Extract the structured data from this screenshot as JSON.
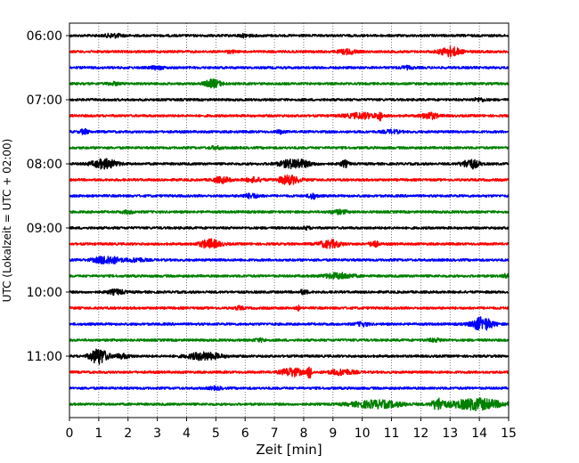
{
  "chart_data": {
    "type": "line",
    "subtype": "helicorder",
    "title": "",
    "xlabel": "Zeit  [min]",
    "ylabel": "UTC (Lokalzeit = UTC + 02:00)",
    "xlim": [
      0,
      15
    ],
    "x_ticks": [
      0,
      1,
      2,
      3,
      4,
      5,
      6,
      7,
      8,
      9,
      10,
      11,
      12,
      13,
      14,
      15
    ],
    "y_tick_labels": [
      "06:00",
      "07:00",
      "08:00",
      "09:00",
      "10:00",
      "11:00"
    ],
    "trace_interval_minutes": 15,
    "grid": "vertical dotted",
    "legend": "none",
    "colors_cycle": [
      "#000000",
      "#ff0000",
      "#0000ff",
      "#008000"
    ],
    "traces": [
      {
        "start": "06:00",
        "color": "#000000",
        "events": [
          [
            1.5,
            0.35,
            0.2
          ],
          [
            6.0,
            0.25,
            0.15
          ]
        ]
      },
      {
        "start": "06:15",
        "color": "#ff0000",
        "events": [
          [
            9.5,
            0.45,
            0.2
          ],
          [
            13.0,
            0.9,
            0.25
          ],
          [
            5.5,
            0.2,
            0.1
          ]
        ]
      },
      {
        "start": "06:30",
        "color": "#0000ff",
        "events": [
          [
            3.0,
            0.3,
            0.15
          ],
          [
            11.5,
            0.25,
            0.15
          ]
        ]
      },
      {
        "start": "06:45",
        "color": "#008000",
        "events": [
          [
            4.9,
            0.75,
            0.2
          ],
          [
            1.5,
            0.25,
            0.15
          ]
        ]
      },
      {
        "start": "07:00",
        "color": "#000000",
        "events": [
          [
            14.0,
            0.3,
            0.15
          ]
        ]
      },
      {
        "start": "07:15",
        "color": "#ff0000",
        "events": [
          [
            10.0,
            0.5,
            0.4
          ],
          [
            10.6,
            0.8,
            0.05
          ],
          [
            12.3,
            0.6,
            0.2
          ]
        ]
      },
      {
        "start": "07:30",
        "color": "#0000ff",
        "events": [
          [
            0.5,
            0.45,
            0.1
          ],
          [
            7.2,
            0.3,
            0.1
          ],
          [
            11.0,
            0.3,
            0.2
          ]
        ]
      },
      {
        "start": "07:45",
        "color": "#008000",
        "events": [
          [
            5.0,
            0.25,
            0.15
          ]
        ]
      },
      {
        "start": "08:00",
        "color": "#000000",
        "events": [
          [
            1.2,
            0.9,
            0.3
          ],
          [
            7.7,
            0.9,
            0.35
          ],
          [
            9.4,
            0.6,
            0.1
          ],
          [
            13.7,
            0.9,
            0.2
          ]
        ]
      },
      {
        "start": "08:15",
        "color": "#ff0000",
        "events": [
          [
            5.2,
            0.55,
            0.2
          ],
          [
            7.5,
            0.85,
            0.25
          ],
          [
            6.3,
            0.4,
            0.2
          ]
        ]
      },
      {
        "start": "08:30",
        "color": "#0000ff",
        "events": [
          [
            6.2,
            0.4,
            0.2
          ],
          [
            8.3,
            0.55,
            0.1
          ]
        ]
      },
      {
        "start": "08:45",
        "color": "#008000",
        "events": [
          [
            2.0,
            0.25,
            0.15
          ],
          [
            9.2,
            0.35,
            0.2
          ]
        ]
      },
      {
        "start": "09:00",
        "color": "#000000",
        "events": [
          [
            8.1,
            0.25,
            0.1
          ]
        ]
      },
      {
        "start": "09:15",
        "color": "#ff0000",
        "events": [
          [
            4.8,
            0.85,
            0.25
          ],
          [
            8.9,
            0.75,
            0.25
          ],
          [
            10.4,
            0.65,
            0.1
          ]
        ]
      },
      {
        "start": "09:30",
        "color": "#0000ff",
        "events": [
          [
            1.3,
            0.8,
            0.3
          ],
          [
            2.3,
            0.35,
            0.2
          ]
        ]
      },
      {
        "start": "09:45",
        "color": "#008000",
        "events": [
          [
            9.2,
            0.55,
            0.35
          ],
          [
            14.9,
            0.4,
            0.1
          ]
        ]
      },
      {
        "start": "10:00",
        "color": "#000000",
        "events": [
          [
            1.6,
            0.45,
            0.2
          ],
          [
            8.0,
            0.4,
            0.1
          ]
        ]
      },
      {
        "start": "10:15",
        "color": "#ff0000",
        "events": [
          [
            5.8,
            0.3,
            0.1
          ],
          [
            7.8,
            0.7,
            0.03
          ]
        ]
      },
      {
        "start": "10:30",
        "color": "#0000ff",
        "events": [
          [
            14.1,
            1.3,
            0.25
          ],
          [
            10.0,
            0.35,
            0.15
          ]
        ]
      },
      {
        "start": "10:45",
        "color": "#008000",
        "events": [
          [
            6.5,
            0.25,
            0.15
          ],
          [
            12.5,
            0.25,
            0.2
          ]
        ]
      },
      {
        "start": "11:00",
        "color": "#000000",
        "events": [
          [
            1.0,
            1.6,
            0.2
          ],
          [
            4.6,
            0.7,
            0.4
          ],
          [
            1.8,
            0.4,
            0.2
          ]
        ]
      },
      {
        "start": "11:15",
        "color": "#ff0000",
        "events": [
          [
            7.6,
            0.8,
            0.25
          ],
          [
            8.2,
            1.3,
            0.05
          ],
          [
            9.3,
            0.5,
            0.3
          ]
        ]
      },
      {
        "start": "11:30",
        "color": "#0000ff",
        "events": [
          [
            5.0,
            0.25,
            0.15
          ]
        ]
      },
      {
        "start": "11:45",
        "color": "#008000",
        "events": [
          [
            10.5,
            0.7,
            0.6
          ],
          [
            12.6,
            1.1,
            0.15
          ],
          [
            13.9,
            1.1,
            0.6
          ]
        ]
      }
    ]
  }
}
